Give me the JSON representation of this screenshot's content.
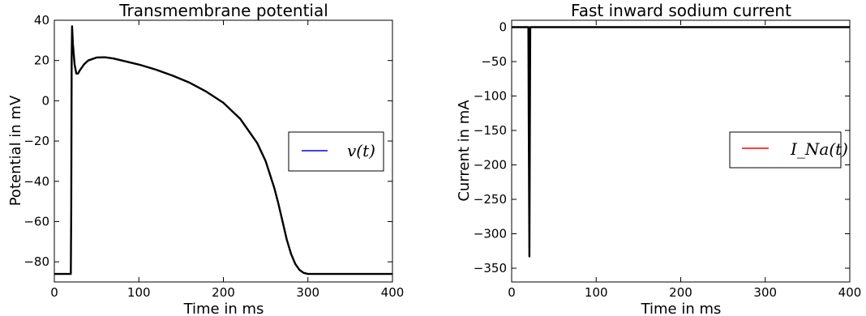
{
  "chart_data": [
    {
      "type": "line",
      "title": "Transmembrane potential",
      "xlabel": "Time in ms",
      "ylabel": "Potential in mV",
      "xlim": [
        0,
        400
      ],
      "ylim": [
        -90,
        40
      ],
      "xticks": [
        0,
        100,
        200,
        300,
        400
      ],
      "yticks": [
        40,
        20,
        0,
        -20,
        -40,
        -60,
        -80
      ],
      "grid": false,
      "legend_position": "center-right",
      "series": [
        {
          "name": "v(t)",
          "color": "#000000",
          "legend_color": "#0000ff",
          "x": [
            0,
            19.5,
            20,
            20.5,
            21,
            22,
            24,
            26,
            28,
            30,
            35,
            40,
            50,
            60,
            70,
            80,
            100,
            120,
            140,
            160,
            180,
            200,
            220,
            240,
            250,
            260,
            265,
            270,
            275,
            280,
            285,
            290,
            295,
            300,
            310,
            320,
            400
          ],
          "y": [
            -86,
            -86,
            -55,
            20,
            37,
            28,
            18,
            13.5,
            13.5,
            15,
            18,
            20,
            21.5,
            21.6,
            21,
            20,
            18,
            15.5,
            12.5,
            9,
            4.5,
            -1,
            -9,
            -21,
            -30,
            -43,
            -51,
            -60,
            -69,
            -76,
            -81,
            -84,
            -85.5,
            -86,
            -86,
            -86,
            -86
          ]
        }
      ]
    },
    {
      "type": "line",
      "title": "Fast inward sodium current",
      "xlabel": "Time in ms",
      "ylabel": "Current in mA",
      "xlim": [
        0,
        400
      ],
      "ylim": [
        -370,
        10
      ],
      "xticks": [
        0,
        100,
        200,
        300,
        400
      ],
      "yticks": [
        0,
        -50,
        -100,
        -150,
        -200,
        -250,
        -300,
        -350
      ],
      "grid": false,
      "legend_position": "center-right",
      "series": [
        {
          "name": "I_Na(t)",
          "color": "#000000",
          "legend_color": "#ff0000",
          "x": [
            0,
            19.8,
            20.2,
            21,
            21.5,
            22,
            400
          ],
          "y": [
            0,
            0,
            -130,
            -333,
            -150,
            0,
            0
          ]
        }
      ]
    }
  ]
}
